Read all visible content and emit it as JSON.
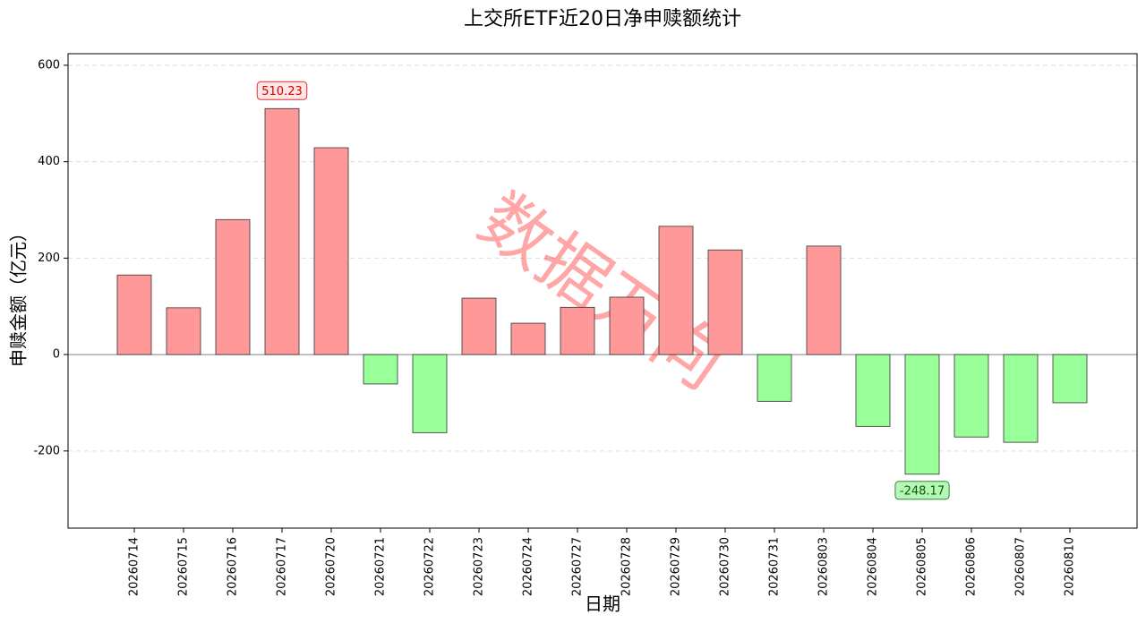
{
  "chart_data": {
    "type": "bar",
    "title": "上交所ETF近20日净申赎额统计",
    "x_label": "日期",
    "y_label": "申赎金额（亿元）",
    "watermark": "数据万向",
    "categories": [
      "20260714",
      "20260715",
      "20260716",
      "20260717",
      "20260720",
      "20260721",
      "20260722",
      "20260723",
      "20260724",
      "20260727",
      "20260728",
      "20260729",
      "20260730",
      "20260731",
      "20260803",
      "20260804",
      "20260805",
      "20260806",
      "20260807",
      "20260810"
    ],
    "values": [
      165,
      97,
      280,
      510.23,
      429,
      -61,
      -162,
      117,
      65,
      98,
      119,
      266,
      217,
      -97,
      225,
      -149,
      -248.17,
      -171,
      -182,
      -100
    ],
    "positive_color": "#ff9999",
    "negative_color": "#99ff99",
    "annotate_extremes": true,
    "ylim": [
      -360,
      624
    ],
    "yticks": [
      -200,
      0,
      200,
      400,
      600
    ],
    "grid": true
  }
}
